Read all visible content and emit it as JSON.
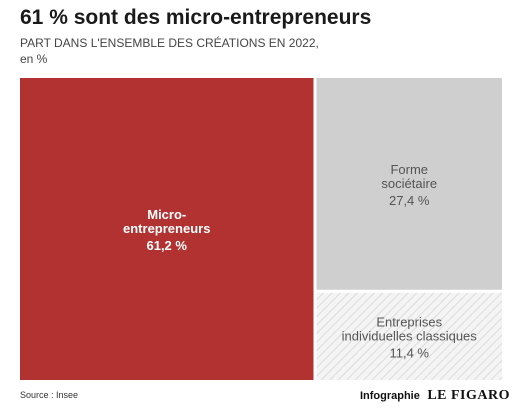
{
  "chart_data": {
    "type": "treemap",
    "title": "61 % sont des micro-entrepreneurs",
    "subtitle": "PART DANS L'ENSEMBLE DES CRÉATIONS EN 2022,",
    "unit": "en %",
    "items": [
      {
        "label_lines": [
          "Micro-",
          "entrepreneurs"
        ],
        "value": 61.2,
        "value_label": "61,2 %",
        "color": "#b23232",
        "text_color": "#ffffff",
        "bold": true,
        "pattern": false
      },
      {
        "label_lines": [
          "Forme",
          "sociétaire"
        ],
        "value": 27.4,
        "value_label": "27,4 %",
        "color": "#cfcfcf",
        "text_color": "#555555",
        "bold": false,
        "pattern": false
      },
      {
        "label_lines": [
          "Entreprises",
          "individuelles classiques"
        ],
        "value": 11.4,
        "value_label": "11,4 %",
        "color": "#f3f3f3",
        "text_color": "#555555",
        "bold": false,
        "pattern": true
      }
    ],
    "source": "Source : Insee",
    "credit_label": "Infographie",
    "credit_brand": "LE FIGARO"
  }
}
